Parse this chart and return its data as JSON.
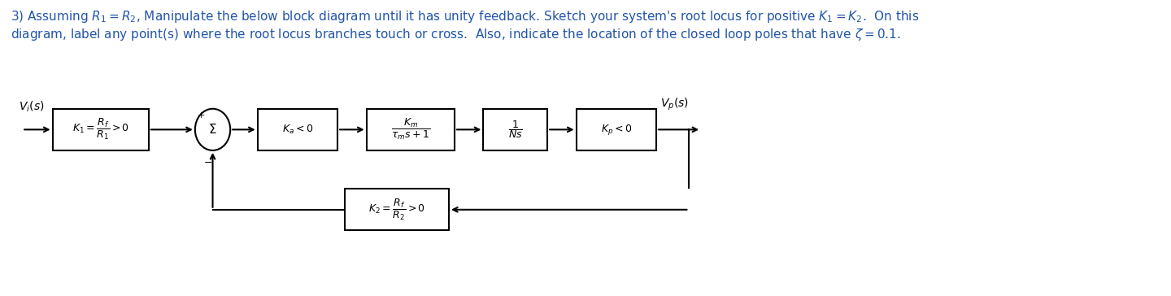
{
  "title_line1": "3) Assuming $R_1 = R_2$, Manipulate the below block diagram until it has unity feedback. Sketch your system's root locus for positive $K_1 = K_2$.  On this",
  "title_line2": "diagram, label any point(s) where the root locus branches touch or cross.  Also, indicate the location of the closed loop poles that have $\\zeta = 0.1$.",
  "title_color": "#2255aa",
  "bg_color": "#ffffff",
  "block_lw": 1.5,
  "arrow_lw": 1.5,
  "font_size_title": 11,
  "font_size_block": 9,
  "font_size_label": 10
}
